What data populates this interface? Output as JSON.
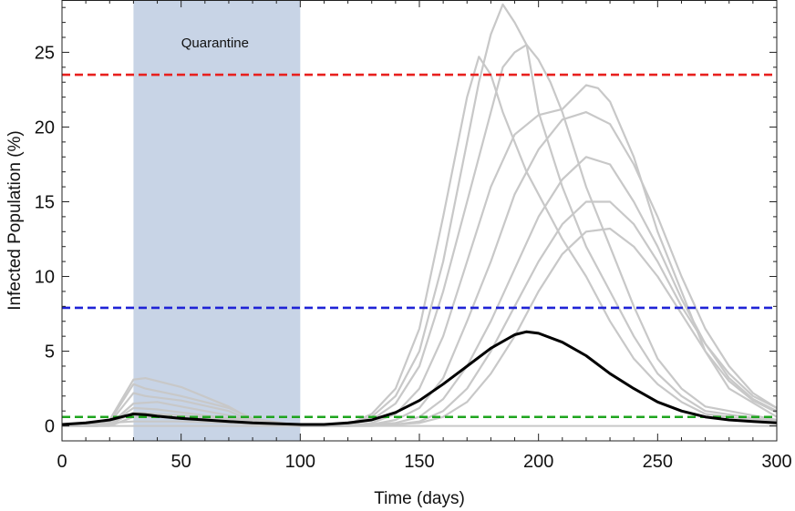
{
  "chart_data": {
    "type": "line",
    "title": "",
    "xlabel": "Time (days)",
    "ylabel": "Infected Population (%)",
    "xlim": [
      0,
      300
    ],
    "ylim": [
      -1,
      28.5
    ],
    "grid": false,
    "x_ticks": [
      0,
      50,
      100,
      150,
      200,
      250,
      300
    ],
    "y_ticks": [
      0,
      5,
      10,
      15,
      20,
      25
    ],
    "shaded_region": {
      "label": "Quarantine",
      "x": [
        30,
        100
      ],
      "color": "#c8d4e6"
    },
    "thresholds": [
      {
        "y": 23.5,
        "color": "#e8201e"
      },
      {
        "y": 7.9,
        "color": "#1f23d6"
      },
      {
        "y": 0.6,
        "color": "#1fa51f"
      }
    ],
    "colors": {
      "simulation": "#c8c8c8",
      "mean": "#000000",
      "baseline": "#c8c8c8"
    },
    "simulation_runs": [
      {
        "x": [
          0,
          15,
          20,
          30,
          35,
          50,
          70,
          80,
          100,
          110,
          120,
          130,
          140,
          150,
          160,
          165,
          170,
          175,
          180,
          185,
          190,
          195,
          200,
          210,
          220,
          230,
          240,
          250,
          260,
          270,
          300
        ],
        "y": [
          0,
          0,
          0.4,
          3.1,
          3.2,
          2.6,
          1.3,
          0.4,
          0,
          0,
          0.1,
          0.8,
          2.5,
          6.5,
          14,
          18,
          22,
          24.7,
          23.5,
          21,
          19,
          17,
          15.5,
          12.5,
          10,
          7,
          4.5,
          2.8,
          1.6,
          0.8,
          0.2
        ]
      },
      {
        "x": [
          0,
          15,
          20,
          30,
          35,
          50,
          70,
          80,
          100,
          110,
          120,
          130,
          140,
          150,
          160,
          170,
          175,
          180,
          185,
          190,
          195,
          200,
          210,
          220,
          230,
          240,
          250,
          260,
          270,
          300
        ],
        "y": [
          0,
          0,
          0.3,
          2.8,
          2.5,
          2,
          1.2,
          0.5,
          0,
          0,
          0.1,
          0.6,
          2,
          5,
          11,
          19,
          23,
          26.2,
          28.2,
          27,
          25.5,
          21,
          16,
          12,
          9,
          6,
          3.5,
          2,
          1,
          0.3
        ]
      },
      {
        "x": [
          0,
          15,
          20,
          30,
          35,
          50,
          70,
          80,
          100,
          110,
          120,
          130,
          140,
          150,
          160,
          170,
          180,
          185,
          190,
          195,
          200,
          205,
          210,
          220,
          230,
          240,
          250,
          260,
          270,
          300
        ],
        "y": [
          0,
          0,
          0.2,
          2.2,
          2,
          1.7,
          1,
          0.3,
          0,
          0,
          0.1,
          0.4,
          1.5,
          4,
          9,
          15,
          21,
          24,
          25,
          25.5,
          24.5,
          23,
          21,
          16,
          12,
          8,
          4.5,
          2.5,
          1.3,
          0.4
        ]
      },
      {
        "x": [
          0,
          20,
          30,
          40,
          50,
          70,
          80,
          100,
          120,
          130,
          140,
          150,
          160,
          170,
          180,
          190,
          200,
          205,
          210,
          215,
          220,
          225,
          230,
          240,
          250,
          260,
          270,
          280,
          300
        ],
        "y": [
          0,
          0.1,
          1.5,
          1.6,
          1.3,
          0.7,
          0.3,
          0,
          0,
          0.2,
          0.8,
          2.5,
          6,
          11,
          16,
          19.5,
          20.8,
          21,
          21.2,
          22,
          22.8,
          22.6,
          21.7,
          18,
          13,
          9,
          5,
          2.5,
          0.6
        ]
      },
      {
        "x": [
          0,
          20,
          30,
          40,
          50,
          70,
          100,
          120,
          130,
          140,
          150,
          160,
          170,
          180,
          190,
          200,
          210,
          220,
          230,
          240,
          250,
          260,
          270,
          280,
          290,
          300
        ],
        "y": [
          0,
          0.1,
          1.2,
          1.1,
          0.9,
          0.5,
          0,
          0,
          0.1,
          0.4,
          1.2,
          3.2,
          7,
          11,
          15.5,
          18.5,
          20.5,
          21,
          20.2,
          17.5,
          14,
          10,
          6.5,
          4,
          2.2,
          1.2
        ]
      },
      {
        "x": [
          0,
          20,
          30,
          40,
          50,
          70,
          100,
          120,
          140,
          150,
          160,
          170,
          180,
          190,
          200,
          210,
          220,
          230,
          240,
          250,
          260,
          270,
          280,
          290,
          300
        ],
        "y": [
          0,
          0.1,
          0.9,
          0.8,
          0.7,
          0.4,
          0,
          0,
          0.2,
          0.6,
          1.8,
          4,
          7,
          10.5,
          14,
          16.5,
          18,
          17.5,
          15,
          12,
          8.5,
          5.5,
          3.2,
          1.8,
          1
        ]
      },
      {
        "x": [
          0,
          20,
          30,
          40,
          50,
          70,
          100,
          120,
          140,
          150,
          160,
          170,
          180,
          190,
          200,
          210,
          220,
          230,
          240,
          250,
          260,
          270,
          280,
          290,
          300
        ],
        "y": [
          0,
          0,
          0.6,
          0.6,
          0.5,
          0.3,
          0,
          0,
          0.1,
          0.3,
          1,
          2.5,
          5,
          8,
          11,
          13.5,
          15,
          15,
          13.5,
          11,
          8,
          5.5,
          3.5,
          2,
          1.2
        ]
      },
      {
        "x": [
          0,
          30,
          50,
          70,
          100,
          130,
          150,
          160,
          170,
          180,
          190,
          200,
          210,
          220,
          230,
          240,
          250,
          260,
          270,
          280,
          290,
          300
        ],
        "y": [
          0,
          0.3,
          0.3,
          0.2,
          0,
          0,
          0.2,
          0.6,
          1.6,
          3.5,
          6,
          9,
          11.5,
          13,
          13.2,
          12,
          10,
          7.5,
          5,
          3,
          1.7,
          0.9
        ]
      }
    ],
    "mean": {
      "name": "",
      "x": [
        0,
        10,
        20,
        25,
        30,
        35,
        40,
        50,
        60,
        70,
        80,
        90,
        100,
        110,
        120,
        130,
        140,
        150,
        160,
        170,
        180,
        190,
        195,
        200,
        210,
        220,
        230,
        240,
        250,
        260,
        270,
        280,
        290,
        300
      ],
      "y": [
        0.1,
        0.2,
        0.4,
        0.6,
        0.8,
        0.75,
        0.65,
        0.5,
        0.4,
        0.3,
        0.2,
        0.15,
        0.1,
        0.1,
        0.2,
        0.4,
        0.9,
        1.7,
        2.8,
        4,
        5.2,
        6.1,
        6.3,
        6.2,
        5.6,
        4.7,
        3.5,
        2.5,
        1.6,
        1,
        0.6,
        0.4,
        0.3,
        0.2
      ]
    }
  }
}
